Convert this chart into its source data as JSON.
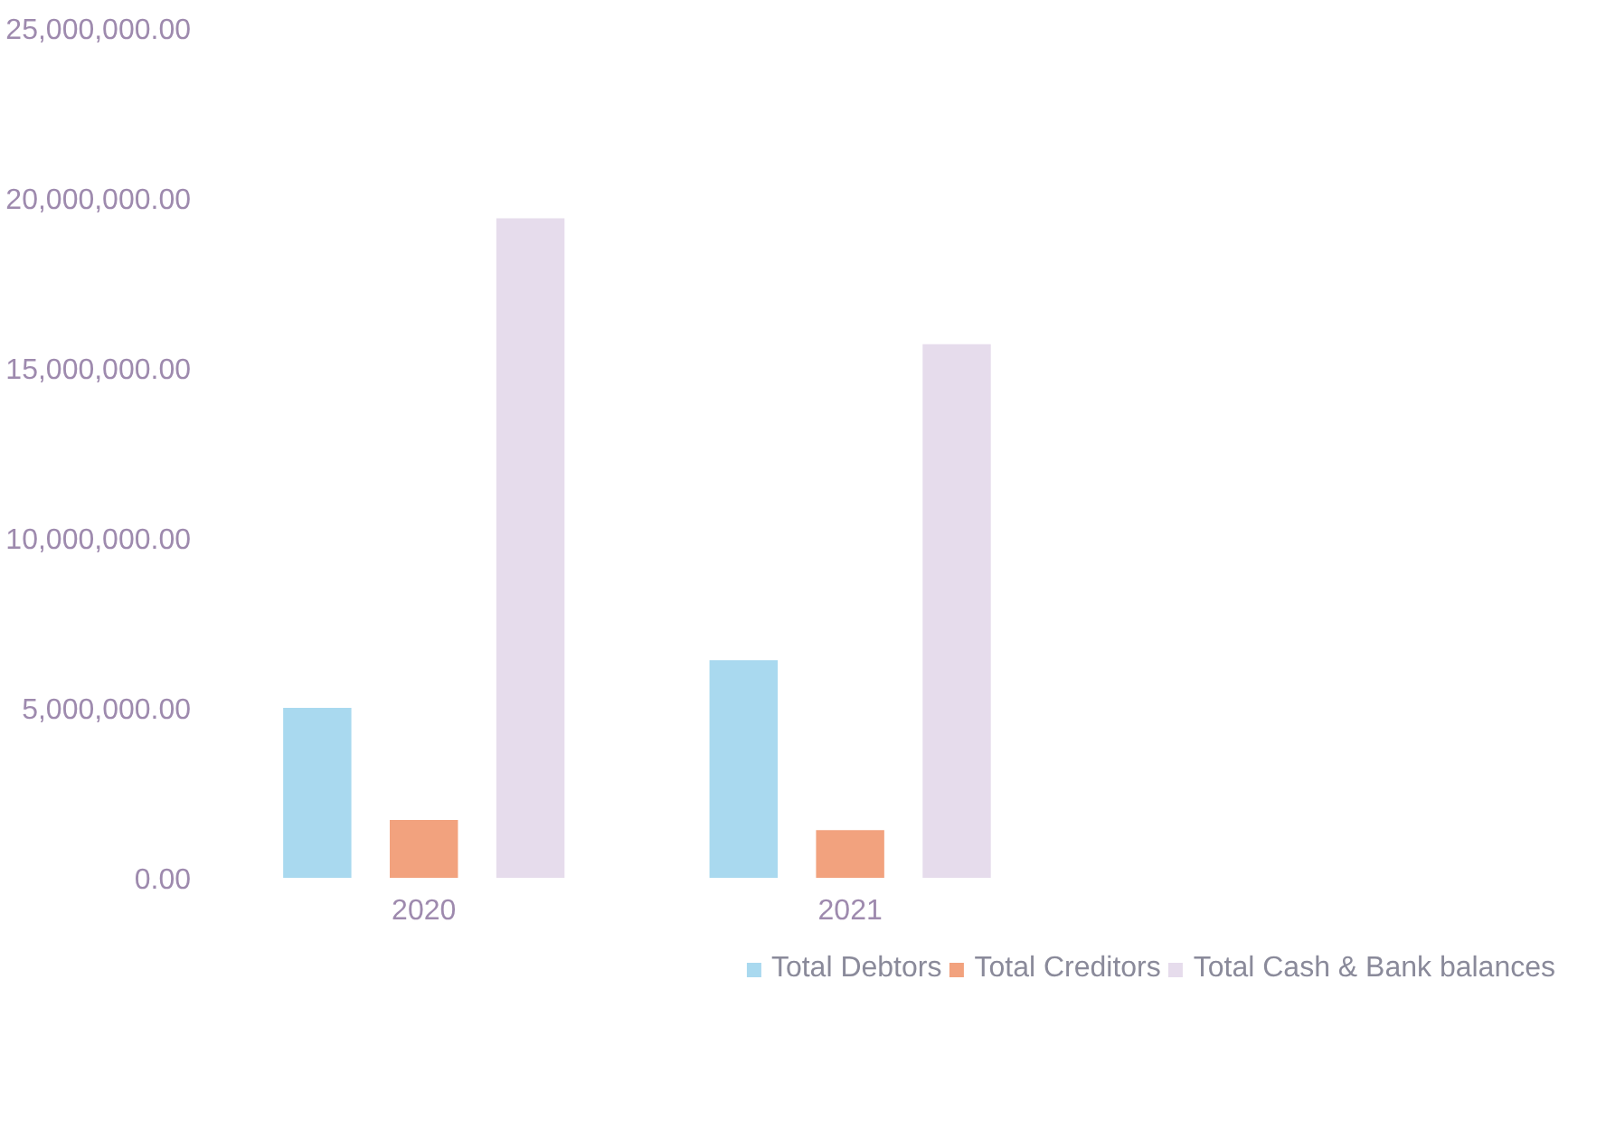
{
  "chart_data": {
    "type": "bar",
    "categories": [
      "2020",
      "2021"
    ],
    "series": [
      {
        "name": "Total Debtors",
        "color": "#a9d9ef",
        "values": [
          5000000,
          6400000
        ]
      },
      {
        "name": "Total Creditors",
        "color": "#f2a27e",
        "values": [
          1700000,
          1400000
        ]
      },
      {
        "name": "Total Cash & Bank balances",
        "color": "#e6dcec",
        "values": [
          19400000,
          15700000
        ]
      }
    ],
    "ylim": [
      0,
      25000000
    ],
    "yticks": [
      {
        "value": 0,
        "label": "0.00"
      },
      {
        "value": 5000000,
        "label": "5,000,000.00"
      },
      {
        "value": 10000000,
        "label": "10,000,000.00"
      },
      {
        "value": 15000000,
        "label": "15,000,000.00"
      },
      {
        "value": 20000000,
        "label": "20,000,000.00"
      },
      {
        "value": 25000000,
        "label": "25,000,000.00"
      }
    ],
    "grid": false,
    "legend": "bottom"
  }
}
